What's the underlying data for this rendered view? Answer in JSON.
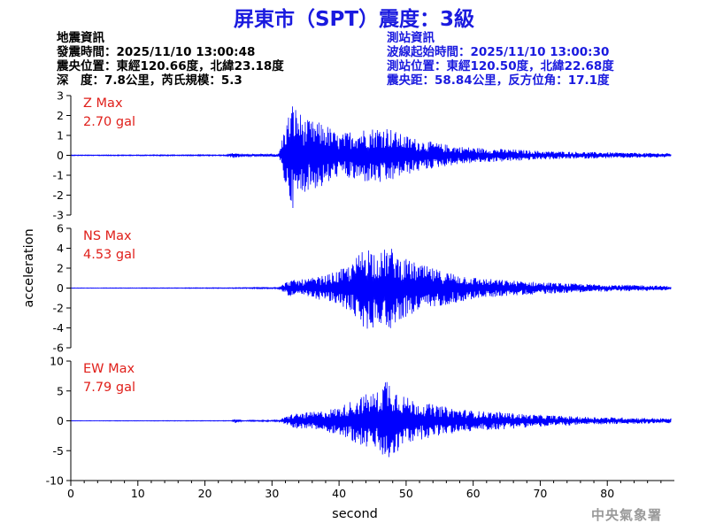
{
  "title": "屏東市（SPT）震度：3級",
  "quake_info": {
    "heading": "地震資訊",
    "origin_time": "發震時間：2025/11/10 13:00:48",
    "epicenter": "震央位置：東經120.66度，北緯23.18度",
    "depth_magnitude": "深　度：7.8公里，芮氏規模：5.3"
  },
  "station_info": {
    "heading": "測站資訊",
    "wave_start": "波線起始時間：2025/11/10 13:00:30",
    "location": "測站位置：東經120.50度，北緯22.68度",
    "distance_azimuth": "震央距：58.84公里，反方位角：17.1度"
  },
  "agency": "中央氣象署",
  "colors": {
    "trace": "#0000ff",
    "label": "#e0201b",
    "title": "#1a1adf",
    "station": "#1a1adf"
  },
  "chart_data": {
    "type": "line",
    "xlabel": "second",
    "ylabel": "acceleration",
    "xlim": [
      0,
      90
    ],
    "xticks": [
      0,
      10,
      20,
      30,
      40,
      50,
      60,
      70,
      80
    ],
    "panels": [
      {
        "name": "Z Max",
        "max_label": "2.70 gal",
        "max": 2.7,
        "ylim": [
          -3,
          3
        ],
        "yticks": [
          -3,
          -2,
          -1,
          0,
          1,
          2,
          3
        ],
        "envelope": [
          [
            0,
            0.02
          ],
          [
            23,
            0.03
          ],
          [
            24.5,
            0.15
          ],
          [
            25.5,
            0.05
          ],
          [
            31,
            0.08
          ],
          [
            31.8,
            1.3
          ],
          [
            33,
            2.7
          ],
          [
            35,
            1.8
          ],
          [
            38,
            1.6
          ],
          [
            40,
            1.0
          ],
          [
            42,
            1.3
          ],
          [
            45,
            1.4
          ],
          [
            47,
            1.5
          ],
          [
            49,
            1.1
          ],
          [
            52,
            0.8
          ],
          [
            55,
            0.6
          ],
          [
            58,
            0.45
          ],
          [
            62,
            0.35
          ],
          [
            66,
            0.3
          ],
          [
            70,
            0.22
          ],
          [
            75,
            0.18
          ],
          [
            80,
            0.15
          ],
          [
            85,
            0.12
          ],
          [
            89.5,
            0.1
          ]
        ]
      },
      {
        "name": "NS Max",
        "max_label": "4.53 gal",
        "max": 4.53,
        "ylim": [
          -6,
          6
        ],
        "yticks": [
          -6,
          -4,
          -2,
          0,
          2,
          4,
          6
        ],
        "envelope": [
          [
            0,
            0.02
          ],
          [
            24,
            0.04
          ],
          [
            31,
            0.08
          ],
          [
            32.5,
            0.8
          ],
          [
            35,
            0.9
          ],
          [
            38,
            1.3
          ],
          [
            40,
            1.8
          ],
          [
            42,
            2.5
          ],
          [
            44,
            4.53
          ],
          [
            46,
            3.5
          ],
          [
            47.5,
            4.3
          ],
          [
            49,
            3.2
          ],
          [
            52,
            2.4
          ],
          [
            55,
            1.8
          ],
          [
            58,
            1.4
          ],
          [
            61,
            1.0
          ],
          [
            65,
            0.8
          ],
          [
            70,
            0.6
          ],
          [
            75,
            0.45
          ],
          [
            80,
            0.35
          ],
          [
            85,
            0.3
          ],
          [
            89.5,
            0.2
          ]
        ]
      },
      {
        "name": "EW Max",
        "max_label": "7.79 gal",
        "max": 7.79,
        "ylim": [
          -10,
          10
        ],
        "yticks": [
          -10,
          -5,
          0,
          5,
          10
        ],
        "envelope": [
          [
            0,
            0.03
          ],
          [
            24,
            0.05
          ],
          [
            24.5,
            0.35
          ],
          [
            25.5,
            0.08
          ],
          [
            31,
            0.12
          ],
          [
            33,
            1.2
          ],
          [
            37,
            1.6
          ],
          [
            40,
            2.3
          ],
          [
            42,
            3.5
          ],
          [
            44,
            4.5
          ],
          [
            46,
            5.0
          ],
          [
            47,
            7.79
          ],
          [
            48.5,
            5.5
          ],
          [
            50,
            4.0
          ],
          [
            52,
            3.2
          ],
          [
            55,
            2.5
          ],
          [
            58,
            2.0
          ],
          [
            61,
            1.6
          ],
          [
            64,
            1.5
          ],
          [
            68,
            1.1
          ],
          [
            72,
            0.9
          ],
          [
            76,
            0.7
          ],
          [
            80,
            0.6
          ],
          [
            85,
            0.5
          ],
          [
            89.5,
            0.4
          ]
        ]
      }
    ]
  }
}
